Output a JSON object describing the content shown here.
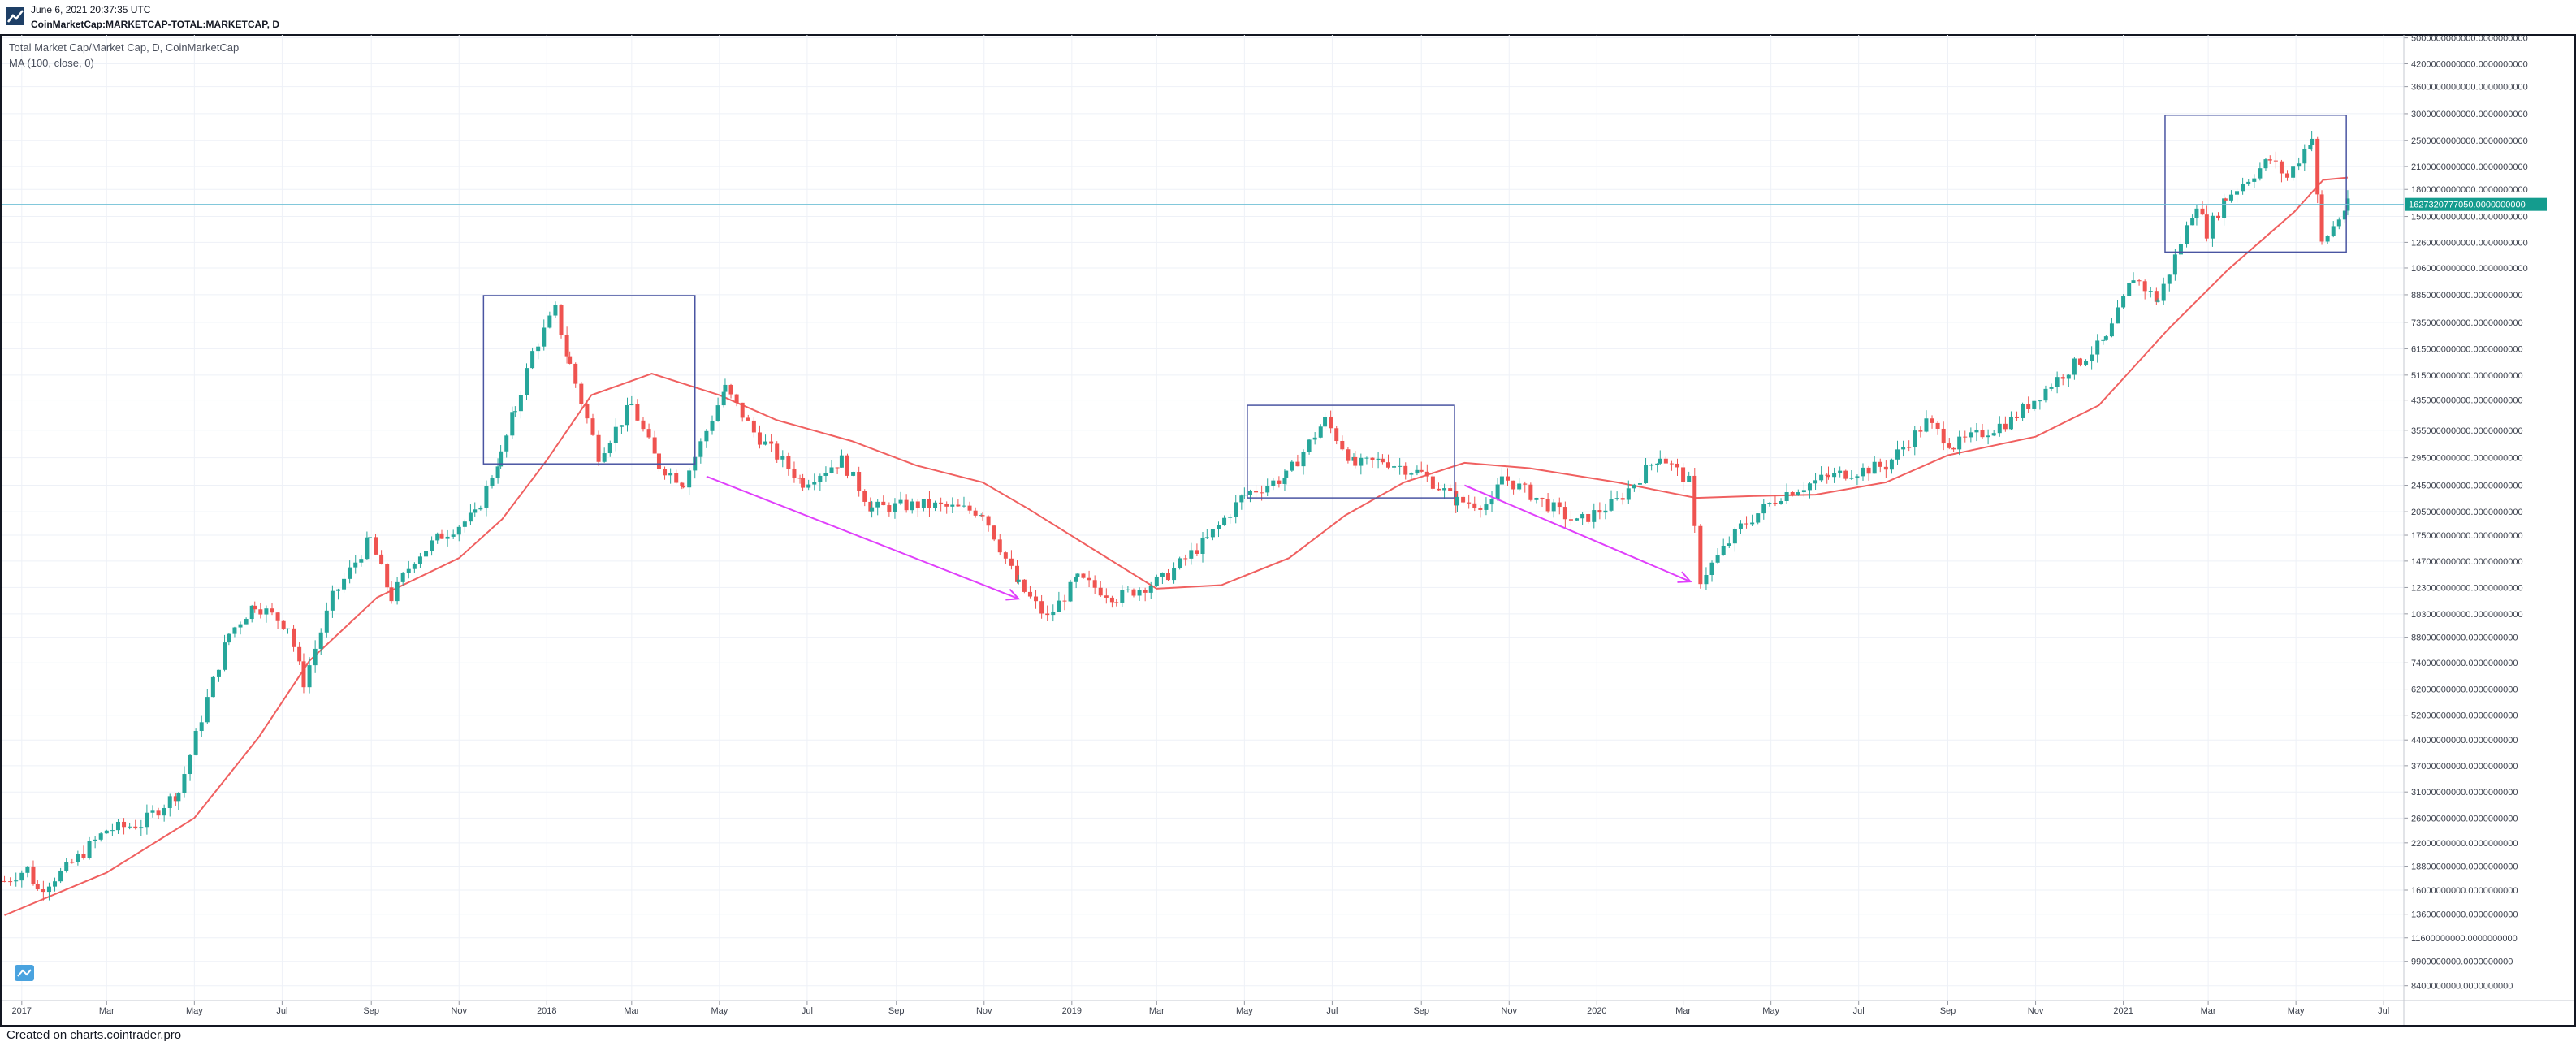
{
  "header": {
    "timestamp": "June 6, 2021 20:37:35 UTC",
    "symbol": "CoinMarketCap:MARKETCAP-TOTAL:MARKETCAP, D"
  },
  "legend": {
    "series_title": "Total Market Cap/Market Cap, D, CoinMarketCap",
    "indicator": "MA (100, close, 0)"
  },
  "footer": {
    "credit": "Created on charts.cointrader.pro"
  },
  "colors": {
    "up": "#26a69a",
    "down": "#ef5350",
    "ma": "#f06060",
    "box": "#4a55a2",
    "arrow": "#e040fb",
    "grid": "#eef1f7",
    "price_line": "#71c1d6",
    "price_badge": "#149c8e",
    "axis_text": "#3a3f4b"
  },
  "chart_data": {
    "type": "line",
    "scale": "log",
    "grid": true,
    "x_ticks": [
      "2017",
      "Mar",
      "May",
      "Jul",
      "Sep",
      "Nov",
      "2018",
      "Mar",
      "May",
      "Jul",
      "Sep",
      "Nov",
      "2019",
      "Mar",
      "May",
      "Jul",
      "Sep",
      "Nov",
      "2020",
      "Mar",
      "May",
      "Jul",
      "Sep",
      "Nov",
      "2021",
      "Mar",
      "May",
      "Jul"
    ],
    "y_ticks": [
      "5000000000000.0000000000",
      "4200000000000.0000000000",
      "3600000000000.0000000000",
      "3000000000000.0000000000",
      "2500000000000.0000000000",
      "2100000000000.0000000000",
      "1800000000000.0000000000",
      "1500000000000.0000000000",
      "1260000000000.0000000000",
      "1060000000000.0000000000",
      "885000000000.0000000000",
      "735000000000.0000000000",
      "615000000000.0000000000",
      "515000000000.0000000000",
      "435000000000.0000000000",
      "355000000000.0000000000",
      "295000000000.0000000000",
      "245000000000.0000000000",
      "205000000000.0000000000",
      "175000000000.0000000000",
      "147000000000.0000000000",
      "123000000000.0000000000",
      "103000000000.0000000000",
      "88000000000.0000000000",
      "74000000000.0000000000",
      "62000000000.0000000000",
      "52000000000.0000000000",
      "44000000000.0000000000",
      "37000000000.0000000000",
      "31000000000.0000000000",
      "26000000000.0000000000",
      "22000000000.0000000000",
      "18800000000.0000000000",
      "16000000000.0000000000",
      "13600000000.0000000000",
      "11600000000.0000000000",
      "9900000000.0000000000",
      "8400000000.0000000000"
    ],
    "y_range": [
      7600000000,
      5100000000000
    ],
    "x_range": [
      "2016-12-18",
      "2021-07-15"
    ],
    "last_price_label": "1627320777050.0000000000",
    "last_price": 1627320777050,
    "series": [
      {
        "name": "Total Market Cap/Market Cap",
        "x": [
          "2016-12-20",
          "2017-01-05",
          "2017-01-12",
          "2017-02-01",
          "2017-03-01",
          "2017-03-25",
          "2017-04-20",
          "2017-05-10",
          "2017-05-25",
          "2017-06-12",
          "2017-07-05",
          "2017-07-16",
          "2017-08-05",
          "2017-08-31",
          "2017-09-15",
          "2017-10-01",
          "2017-10-20",
          "2017-11-12",
          "2017-11-30",
          "2017-12-10",
          "2017-12-22",
          "2018-01-07",
          "2018-01-17",
          "2018-02-06",
          "2018-03-01",
          "2018-03-20",
          "2018-04-06",
          "2018-05-05",
          "2018-05-25",
          "2018-06-28",
          "2018-07-25",
          "2018-08-15",
          "2018-09-20",
          "2018-10-31",
          "2018-11-25",
          "2018-12-15",
          "2019-01-05",
          "2019-02-01",
          "2019-03-05",
          "2019-04-05",
          "2019-05-01",
          "2019-05-30",
          "2019-06-26",
          "2019-07-17",
          "2019-08-05",
          "2019-09-01",
          "2019-09-26",
          "2019-10-20",
          "2019-10-27",
          "2019-12-18",
          "2020-01-15",
          "2020-02-14",
          "2020-03-05",
          "2020-03-13",
          "2020-04-10",
          "2020-05-08",
          "2020-06-10",
          "2020-07-20",
          "2020-08-17",
          "2020-09-05",
          "2020-10-15",
          "2020-11-20",
          "2020-12-20",
          "2021-01-08",
          "2021-01-25",
          "2021-02-21",
          "2021-02-28",
          "2021-03-13",
          "2021-04-13",
          "2021-04-25",
          "2021-05-12",
          "2021-05-19",
          "2021-06-06"
        ],
        "y": [
          17000000000,
          18500000000,
          16000000000,
          18500000000,
          24000000000,
          25000000000,
          31000000000,
          58000000000,
          90000000000,
          110000000000,
          95000000000,
          65000000000,
          115000000000,
          170000000000,
          115000000000,
          150000000000,
          175000000000,
          200000000000,
          300000000000,
          410000000000,
          600000000000,
          800000000000,
          550000000000,
          300000000000,
          420000000000,
          280000000000,
          250000000000,
          470000000000,
          350000000000,
          250000000000,
          290000000000,
          210000000000,
          215000000000,
          205000000000,
          125000000000,
          100000000000,
          130000000000,
          115000000000,
          130000000000,
          170000000000,
          230000000000,
          260000000000,
          380000000000,
          280000000000,
          290000000000,
          265000000000,
          220000000000,
          215000000000,
          260000000000,
          190000000000,
          220000000000,
          300000000000,
          250000000000,
          130000000000,
          185000000000,
          230000000000,
          260000000000,
          280000000000,
          375000000000,
          320000000000,
          380000000000,
          520000000000,
          650000000000,
          1000000000000,
          850000000000,
          1650000000000,
          1350000000000,
          1700000000000,
          2200000000000,
          1950000000000,
          2550000000000,
          1250000000000,
          1620000000000
        ]
      },
      {
        "name": "MA (100, close, 0)",
        "x": [
          "2016-12-20",
          "2017-03-01",
          "2017-05-01",
          "2017-06-15",
          "2017-07-20",
          "2017-09-05",
          "2017-11-01",
          "2017-12-01",
          "2018-01-01",
          "2018-02-01",
          "2018-03-15",
          "2018-05-01",
          "2018-06-10",
          "2018-08-01",
          "2018-09-15",
          "2018-10-31",
          "2018-12-01",
          "2019-01-15",
          "2019-03-01",
          "2019-04-15",
          "2019-06-01",
          "2019-07-10",
          "2019-08-20",
          "2019-10-01",
          "2019-11-15",
          "2020-01-15",
          "2020-03-10",
          "2020-04-20",
          "2020-06-01",
          "2020-07-20",
          "2020-09-01",
          "2020-11-01",
          "2020-12-15",
          "2021-02-01",
          "2021-03-15",
          "2021-04-30",
          "2021-05-20",
          "2021-06-06"
        ],
        "y": [
          13500000000,
          18000000000,
          26000000000,
          45000000000,
          75000000000,
          115000000000,
          150000000000,
          195000000000,
          290000000000,
          450000000000,
          520000000000,
          450000000000,
          380000000000,
          330000000000,
          280000000000,
          250000000000,
          210000000000,
          160000000000,
          122000000000,
          125000000000,
          150000000000,
          200000000000,
          250000000000,
          285000000000,
          275000000000,
          250000000000,
          225000000000,
          228000000000,
          230000000000,
          250000000000,
          300000000000,
          340000000000,
          420000000000,
          700000000000,
          1050000000000,
          1550000000000,
          1920000000000,
          1950000000000
        ]
      }
    ],
    "rectangles": [
      {
        "x1": "2017-11-18",
        "x2": "2018-04-14",
        "y1": 283000000000,
        "y2": 880000000000
      },
      {
        "x1": "2019-05-03",
        "x2": "2019-09-24",
        "y1": 225000000000,
        "y2": 420000000000
      },
      {
        "x1": "2021-01-30",
        "x2": "2021-06-05",
        "y1": 1180000000000,
        "y2": 2970000000000
      }
    ],
    "arrows": [
      {
        "x1": "2018-04-22",
        "y1": 260000000000,
        "x2": "2018-11-25",
        "y2": 114000000000
      },
      {
        "x1": "2019-10-01",
        "y1": 245000000000,
        "x2": "2020-03-06",
        "y2": 128000000000
      }
    ]
  }
}
